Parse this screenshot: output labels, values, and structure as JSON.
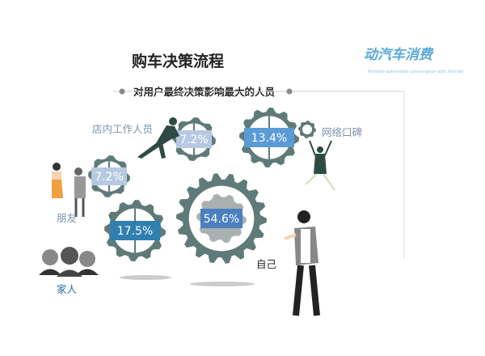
{
  "title": "购车决策流程",
  "subtitle": "对用户最终决策影响最大的人员",
  "logo": {
    "text": "动汽车消费",
    "tagline": "Promote automobile consumption with Internet"
  },
  "colors": {
    "gear": "#5f7b79",
    "gear_inner": "#a9b0b0",
    "light_box": "#b7c9e2",
    "mid_box": "#5b9bd5",
    "dark_box": "#2f7fb0",
    "self_box": "#4a7fc0",
    "label": "#7b93ad"
  },
  "influencers": [
    {
      "id": "store",
      "label": "店内工作人员",
      "percent": "7.2%"
    },
    {
      "id": "network",
      "label": "网络口碑",
      "percent": "13.4%"
    },
    {
      "id": "friends",
      "label": "朋友",
      "percent": "7.2%"
    },
    {
      "id": "family",
      "label": "家人",
      "percent": "17.5%"
    },
    {
      "id": "self",
      "label": "自己",
      "percent": "54.6%"
    }
  ]
}
